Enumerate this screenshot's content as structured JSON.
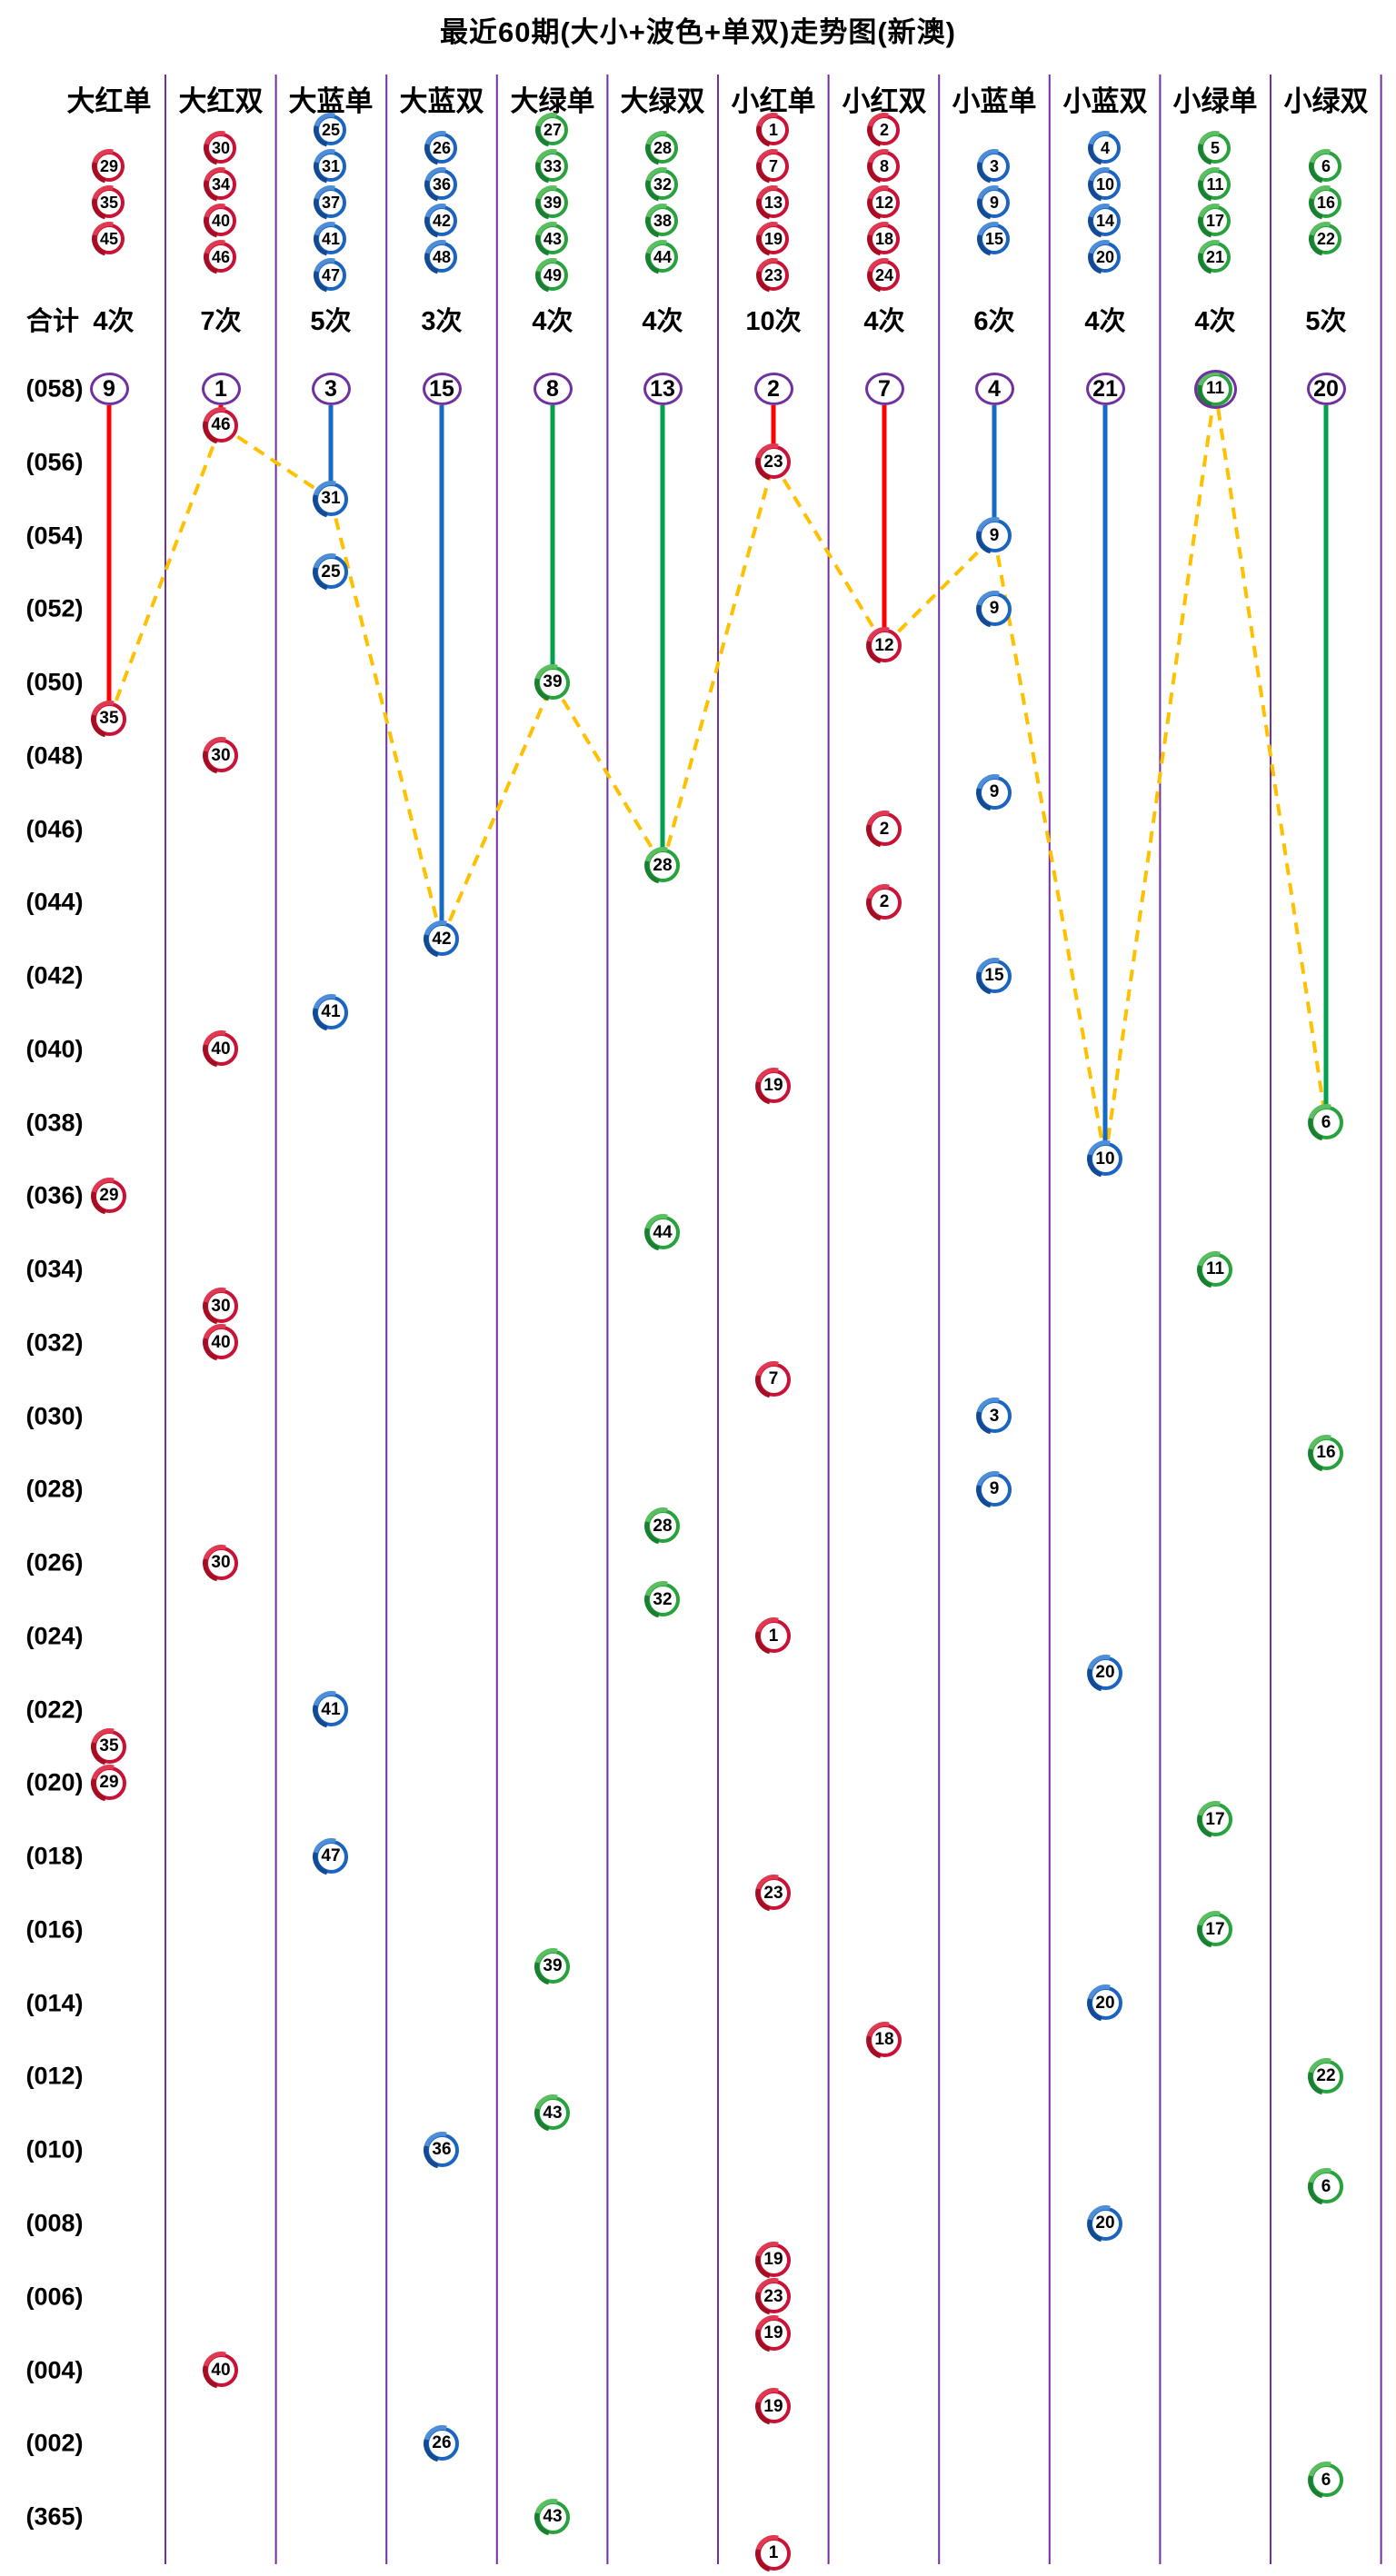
{
  "title": "最近60期(大小+波色+单双)走势图(新澳)",
  "summary_label": "合计",
  "colors": {
    "ball_red": "#C91235",
    "ball_blue": "#1B64C0",
    "ball_green": "#27A23C",
    "line_red": "#FF0000",
    "line_blue": "#1569C7",
    "line_green": "#00A14E",
    "dashed_gold": "#FFC000",
    "divider_purple": "#7030A0",
    "text_black": "#000000"
  },
  "columns": [
    {
      "label": "大红单",
      "color": "red",
      "balls": [
        "29",
        "35",
        "45"
      ],
      "count": "4次",
      "miss_text": "9"
    },
    {
      "label": "大红双",
      "color": "red",
      "balls": [
        "30",
        "34",
        "40",
        "46"
      ],
      "count": "7次",
      "miss_text": "1"
    },
    {
      "label": "大蓝单",
      "color": "blue",
      "balls": [
        "25",
        "31",
        "37",
        "41",
        "47"
      ],
      "count": "5次",
      "miss_text": "3"
    },
    {
      "label": "大蓝双",
      "color": "blue",
      "balls": [
        "26",
        "36",
        "42",
        "48"
      ],
      "count": "3次",
      "miss_text": "15"
    },
    {
      "label": "大绿单",
      "color": "green",
      "balls": [
        "27",
        "33",
        "39",
        "43",
        "49"
      ],
      "count": "4次",
      "miss_text": "8"
    },
    {
      "label": "大绿双",
      "color": "green",
      "balls": [
        "28",
        "32",
        "38",
        "44"
      ],
      "count": "4次",
      "miss_text": "13"
    },
    {
      "label": "小红单",
      "color": "red",
      "balls": [
        "1",
        "7",
        "13",
        "19",
        "23"
      ],
      "count": "10次",
      "miss_text": "2"
    },
    {
      "label": "小红双",
      "color": "red",
      "balls": [
        "2",
        "8",
        "12",
        "18",
        "24"
      ],
      "count": "4次",
      "miss_text": "7"
    },
    {
      "label": "小蓝单",
      "color": "blue",
      "balls": [
        "3",
        "9",
        "15"
      ],
      "count": "6次",
      "miss_text": "4"
    },
    {
      "label": "小蓝双",
      "color": "blue",
      "balls": [
        "4",
        "10",
        "14",
        "20"
      ],
      "count": "4次",
      "miss_text": "21"
    },
    {
      "label": "小绿单",
      "color": "green",
      "balls": [
        "5",
        "11",
        "17",
        "21"
      ],
      "count": "4次",
      "miss_text": null,
      "top_ball": "11"
    },
    {
      "label": "小绿双",
      "color": "green",
      "balls": [
        "6",
        "16",
        "22"
      ],
      "count": "5次",
      "miss_text": "20"
    }
  ],
  "row_labels": [
    "(058)",
    "(056)",
    "(054)",
    "(052)",
    "(050)",
    "(048)",
    "(046)",
    "(044)",
    "(042)",
    "(040)",
    "(038)",
    "(036)",
    "(034)",
    "(032)",
    "(030)",
    "(028)",
    "(026)",
    "(024)",
    "(022)",
    "(020)",
    "(018)",
    "(016)",
    "(014)",
    "(012)",
    "(010)",
    "(008)",
    "(006)",
    "(004)",
    "(002)",
    "(365)"
  ],
  "chart_data": {
    "type": "scatter",
    "title": "最近60期(大小+波色+单双)走势图(新澳)",
    "x_categories": [
      "大红单",
      "大红双",
      "大蓝单",
      "大蓝双",
      "大绿单",
      "大绿双",
      "小红单",
      "小红双",
      "小蓝单",
      "小蓝双",
      "小绿单",
      "小绿双"
    ],
    "y_axis": "期号 (period, 058 top → 364 bottom)",
    "column_totals": [
      "4次",
      "7次",
      "5次",
      "3次",
      "4次",
      "4次",
      "10次",
      "4次",
      "6次",
      "4次",
      "4次",
      "5次"
    ],
    "miss_counts": [
      9,
      1,
      3,
      15,
      8,
      13,
      2,
      7,
      4,
      21,
      0,
      20
    ],
    "legend_position": "none",
    "grid": "vertical purple column dividers",
    "draws": [
      {
        "period": "058",
        "number": "11",
        "col": 11
      },
      {
        "period": "057",
        "number": "46",
        "col": 2
      },
      {
        "period": "056",
        "number": "23",
        "col": 7
      },
      {
        "period": "055",
        "number": "31",
        "col": 3
      },
      {
        "period": "054",
        "number": "9",
        "col": 9
      },
      {
        "period": "053",
        "number": "25",
        "col": 3
      },
      {
        "period": "052",
        "number": "9",
        "col": 9
      },
      {
        "period": "051",
        "number": "12",
        "col": 8
      },
      {
        "period": "050",
        "number": "39",
        "col": 5
      },
      {
        "period": "049",
        "number": "35",
        "col": 1
      },
      {
        "period": "048",
        "number": "30",
        "col": 2
      },
      {
        "period": "047",
        "number": "9",
        "col": 9
      },
      {
        "period": "046",
        "number": "2",
        "col": 8
      },
      {
        "period": "045",
        "number": "28",
        "col": 6
      },
      {
        "period": "044",
        "number": "2",
        "col": 8
      },
      {
        "period": "043",
        "number": "42",
        "col": 4
      },
      {
        "period": "042",
        "number": "15",
        "col": 9
      },
      {
        "period": "041",
        "number": "41",
        "col": 3
      },
      {
        "period": "040",
        "number": "40",
        "col": 2
      },
      {
        "period": "039",
        "number": "19",
        "col": 7
      },
      {
        "period": "038",
        "number": "6",
        "col": 12
      },
      {
        "period": "037",
        "number": "10",
        "col": 10
      },
      {
        "period": "036",
        "number": "29",
        "col": 1
      },
      {
        "period": "035",
        "number": "44",
        "col": 6
      },
      {
        "period": "034",
        "number": "11",
        "col": 11
      },
      {
        "period": "033",
        "number": "30",
        "col": 2
      },
      {
        "period": "032",
        "number": "40",
        "col": 2
      },
      {
        "period": "031",
        "number": "7",
        "col": 7
      },
      {
        "period": "030",
        "number": "3",
        "col": 9
      },
      {
        "period": "029",
        "number": "16",
        "col": 12
      },
      {
        "period": "028",
        "number": "9",
        "col": 9
      },
      {
        "period": "027",
        "number": "28",
        "col": 6
      },
      {
        "period": "026",
        "number": "30",
        "col": 2
      },
      {
        "period": "025",
        "number": "32",
        "col": 6
      },
      {
        "period": "024",
        "number": "1",
        "col": 7
      },
      {
        "period": "023",
        "number": "20",
        "col": 10
      },
      {
        "period": "022",
        "number": "41",
        "col": 3
      },
      {
        "period": "021",
        "number": "35",
        "col": 1
      },
      {
        "period": "020",
        "number": "29",
        "col": 1
      },
      {
        "period": "019",
        "number": "17",
        "col": 11
      },
      {
        "period": "018",
        "number": "47",
        "col": 3
      },
      {
        "period": "017",
        "number": "23",
        "col": 7
      },
      {
        "period": "016",
        "number": "17",
        "col": 11
      },
      {
        "period": "015",
        "number": "39",
        "col": 5
      },
      {
        "period": "014",
        "number": "20",
        "col": 10
      },
      {
        "period": "013",
        "number": "18",
        "col": 8
      },
      {
        "period": "012",
        "number": "22",
        "col": 12
      },
      {
        "period": "011",
        "number": "43",
        "col": 5
      },
      {
        "period": "010",
        "number": "36",
        "col": 4
      },
      {
        "period": "009",
        "number": "6",
        "col": 12
      },
      {
        "period": "008",
        "number": "20",
        "col": 10
      },
      {
        "period": "007",
        "number": "19",
        "col": 7
      },
      {
        "period": "006",
        "number": "23",
        "col": 7
      },
      {
        "period": "005",
        "number": "19",
        "col": 7
      },
      {
        "period": "004",
        "number": "40",
        "col": 2
      },
      {
        "period": "003",
        "number": "19",
        "col": 7
      },
      {
        "period": "002",
        "number": "26",
        "col": 4
      },
      {
        "period": "001",
        "number": "6",
        "col": 12
      },
      {
        "period": "365",
        "number": "43",
        "col": 5
      },
      {
        "period": "364",
        "number": "1",
        "col": 7
      }
    ]
  }
}
